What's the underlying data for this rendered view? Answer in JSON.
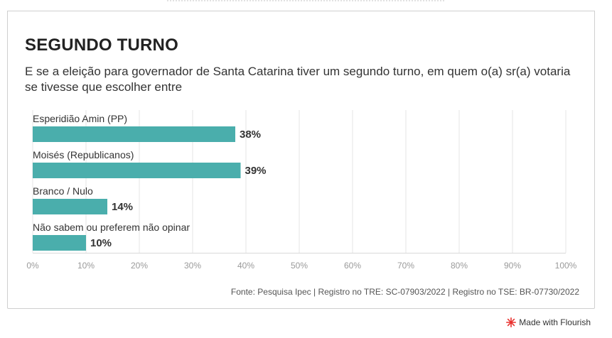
{
  "header": {
    "title": "SEGUNDO TURNO",
    "subtitle": "E se a eleição para governador de Santa Catarina tiver um segundo turno, em quem o(a) sr(a) votaria se tivesse que escolher entre"
  },
  "chart_data": {
    "type": "bar",
    "orientation": "horizontal",
    "categories": [
      "Esperidião Amin (PP)",
      "Moisés (Republicanos)",
      "Branco / Nulo",
      "Não sabem ou preferem não opinar"
    ],
    "values": [
      38,
      39,
      14,
      10
    ],
    "value_labels": [
      "38%",
      "39%",
      "14%",
      "10%"
    ],
    "xlim": [
      0,
      100
    ],
    "x_ticks": [
      0,
      10,
      20,
      30,
      40,
      50,
      60,
      70,
      80,
      90,
      100
    ],
    "x_tick_labels": [
      "0%",
      "10%",
      "20%",
      "30%",
      "40%",
      "50%",
      "60%",
      "70%",
      "80%",
      "90%",
      "100%"
    ],
    "grid": true,
    "bar_color": "#4aaeac"
  },
  "footer": {
    "source": "Fonte: Pesquisa Ipec | Registro no TRE: SC-07903/2022 | Registro no TSE: BR-07730/2022",
    "flourish_label": "Made with Flourish",
    "flourish_icon": "flourish-logo-icon",
    "flourish_color": "#e8322f"
  }
}
